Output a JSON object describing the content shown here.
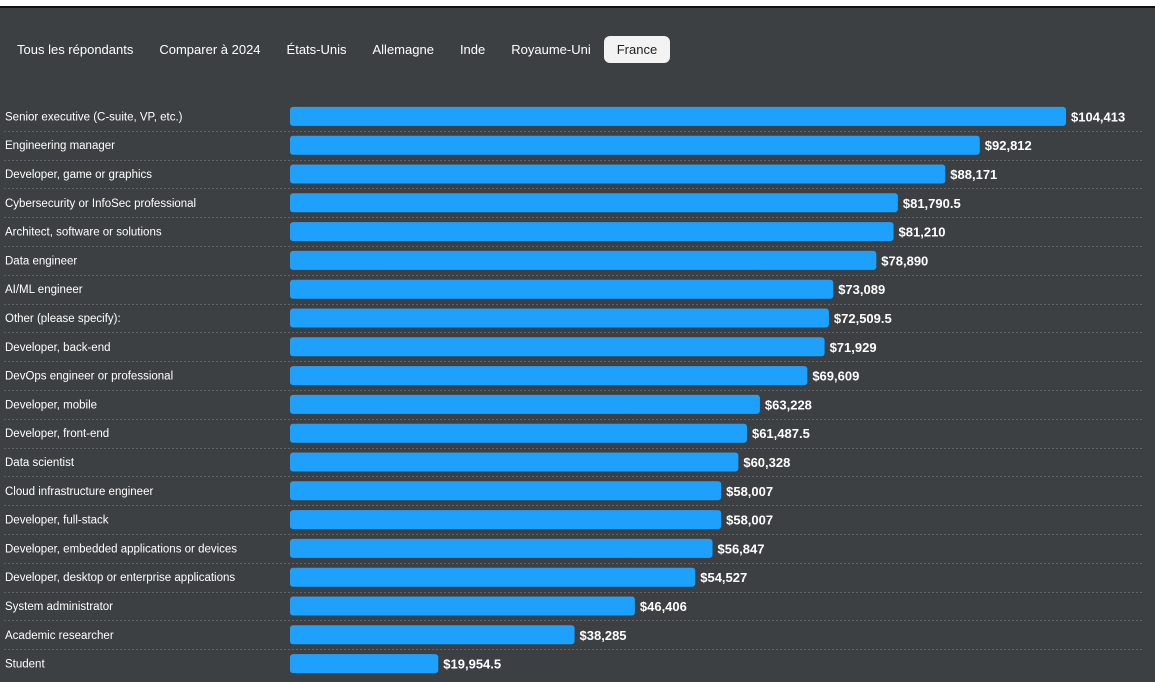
{
  "tabs": [
    {
      "label": "Tous les répondants",
      "active": false
    },
    {
      "label": "Comparer à 2024",
      "active": false
    },
    {
      "label": "États-Unis",
      "active": false
    },
    {
      "label": "Allemagne",
      "active": false
    },
    {
      "label": "Inde",
      "active": false
    },
    {
      "label": "Royaume-Uni",
      "active": false
    },
    {
      "label": "France",
      "active": true
    }
  ],
  "colors": {
    "bar": "#1ea1fc",
    "background": "#3c4043",
    "active_tab": "#f3f3f3"
  },
  "chart_data": {
    "type": "bar",
    "orientation": "horizontal",
    "xlim": [
      0,
      104413
    ],
    "grid": false,
    "categories": [
      "Senior executive (C-suite, VP, etc.)",
      "Engineering manager",
      "Developer, game or graphics",
      "Cybersecurity or InfoSec professional",
      "Architect, software or solutions",
      "Data engineer",
      "AI/ML engineer",
      "Other (please specify):",
      "Developer, back-end",
      "DevOps engineer or professional",
      "Developer, mobile",
      "Developer, front-end",
      "Data scientist",
      "Cloud infrastructure engineer",
      "Developer, full-stack",
      "Developer, embedded applications or devices",
      "Developer, desktop or enterprise applications",
      "System administrator",
      "Academic researcher",
      "Student"
    ],
    "values": [
      104413,
      92812,
      88171,
      81790.5,
      81210,
      78890,
      73089,
      72509.5,
      71929,
      69609,
      63228,
      61487.5,
      60328,
      58007,
      58007,
      56847,
      54527,
      46406,
      38285,
      19954.5
    ],
    "value_labels": [
      "$104,413",
      "$92,812",
      "$88,171",
      "$81,790.5",
      "$81,210",
      "$78,890",
      "$73,089",
      "$72,509.5",
      "$71,929",
      "$69,609",
      "$63,228",
      "$61,487.5",
      "$60,328",
      "$58,007",
      "$58,007",
      "$56,847",
      "$54,527",
      "$46,406",
      "$38,285",
      "$19,954.5"
    ]
  }
}
